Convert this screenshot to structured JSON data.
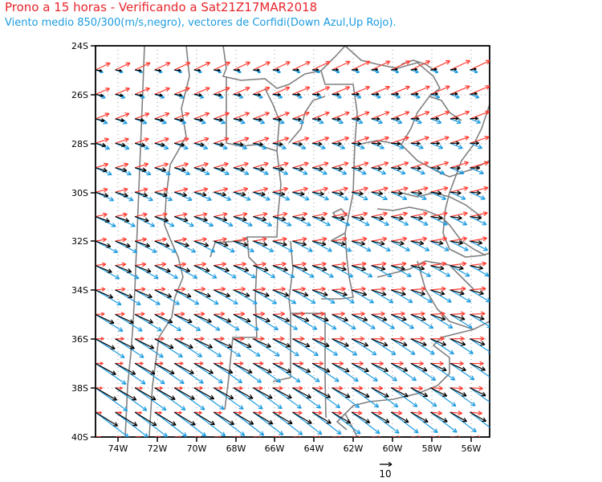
{
  "title": "Prono a 15 horas - Verificando a Sat21Z17MAR2018",
  "subtitle": "Viento medio 850/300(m/s,negro), vectores de Corfidi(Down Azul,Up Rojo).",
  "map": {
    "lon_range": [
      -75,
      -55
    ],
    "lat_range": [
      -40,
      -24
    ],
    "y_ticks": [
      "24S",
      "26S",
      "28S",
      "30S",
      "32S",
      "34S",
      "36S",
      "38S",
      "40S"
    ],
    "x_ticks": [
      "74W",
      "72W",
      "70W",
      "68W",
      "66W",
      "64W",
      "62W",
      "60W",
      "58W",
      "56W"
    ],
    "grid": true,
    "colors": {
      "mean_wind": "#000000",
      "corfidi_down": "#1a9be0",
      "corfidi_up": "#ff3b30",
      "borders": "#808080"
    }
  },
  "reference_vector": {
    "label": "10"
  }
}
